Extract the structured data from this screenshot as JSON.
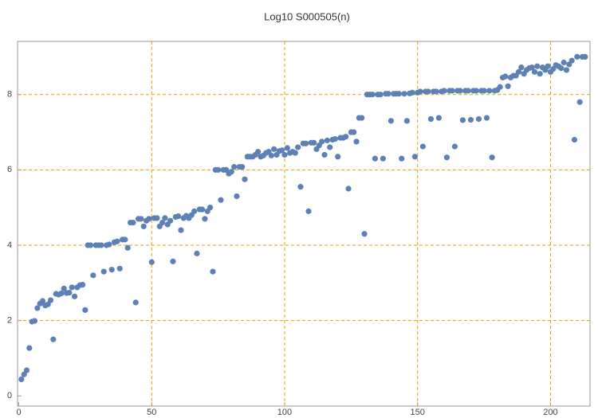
{
  "chart_data": {
    "type": "scatter",
    "title": "Log10 S000505(n)",
    "color": "#5e81b5",
    "grid_color": "#e69f00",
    "grid": true,
    "xlim": [
      0,
      215
    ],
    "ylim": [
      -0.27,
      9.41
    ],
    "xticks": [
      0,
      50,
      100,
      150,
      200
    ],
    "yticks": [
      0,
      2,
      4,
      6,
      8
    ],
    "x": [
      1,
      2,
      3,
      4,
      5,
      6,
      7,
      8,
      9,
      10,
      11,
      12,
      13,
      14,
      15,
      16,
      17,
      18,
      19,
      20,
      21,
      22,
      23,
      24,
      25,
      26,
      27,
      28,
      29,
      30,
      31,
      32,
      33,
      34,
      35,
      36,
      37,
      38,
      39,
      40,
      41,
      42,
      43,
      44,
      45,
      46,
      47,
      48,
      49,
      50,
      51,
      52,
      53,
      54,
      55,
      56,
      57,
      58,
      59,
      60,
      61,
      62,
      63,
      64,
      65,
      66,
      67,
      68,
      69,
      70,
      71,
      72,
      73,
      74,
      75,
      76,
      77,
      78,
      79,
      80,
      81,
      82,
      83,
      84,
      85,
      86,
      87,
      88,
      89,
      90,
      91,
      92,
      93,
      94,
      95,
      96,
      97,
      98,
      99,
      100,
      101,
      102,
      103,
      104,
      105,
      106,
      107,
      108,
      109,
      110,
      111,
      112,
      113,
      114,
      115,
      116,
      117,
      118,
      119,
      120,
      121,
      122,
      123,
      124,
      125,
      126,
      127,
      128,
      129,
      130,
      131,
      132,
      133,
      134,
      135,
      136,
      137,
      138,
      139,
      140,
      141,
      142,
      143,
      144,
      145,
      146,
      147,
      148,
      149,
      150,
      151,
      152,
      153,
      154,
      155,
      156,
      157,
      158,
      159,
      160,
      161,
      162,
      163,
      164,
      165,
      166,
      167,
      168,
      169,
      170,
      171,
      172,
      173,
      174,
      175,
      176,
      177,
      178,
      179,
      180,
      181,
      182,
      183,
      184,
      185,
      186,
      187,
      188,
      189,
      190,
      191,
      192,
      193,
      194,
      195,
      196,
      197,
      198,
      199,
      200,
      201,
      202,
      203,
      204,
      205,
      206,
      207,
      208,
      209,
      210,
      211,
      212,
      213
    ],
    "values": [
      0.44,
      0.57,
      0.68,
      1.27,
      1.97,
      1.99,
      2.33,
      2.45,
      2.52,
      2.4,
      2.43,
      2.54,
      1.5,
      2.71,
      2.69,
      2.72,
      2.85,
      2.73,
      2.74,
      2.88,
      2.64,
      2.88,
      2.94,
      2.95,
      2.28,
      4.0,
      4.0,
      3.2,
      4.0,
      4.0,
      4.0,
      3.3,
      4.0,
      4.02,
      3.35,
      4.08,
      4.1,
      3.38,
      4.15,
      4.15,
      3.93,
      4.6,
      4.6,
      2.48,
      4.7,
      4.7,
      4.5,
      4.65,
      4.7,
      3.55,
      4.72,
      4.72,
      4.5,
      4.6,
      4.72,
      4.55,
      4.65,
      3.57,
      4.75,
      4.77,
      4.4,
      4.72,
      4.78,
      4.72,
      4.8,
      4.9,
      3.78,
      4.95,
      4.95,
      4.7,
      4.9,
      5.0,
      3.3,
      6.0,
      6.0,
      5.2,
      6.0,
      6.0,
      5.9,
      5.95,
      6.08,
      5.3,
      6.08,
      6.08,
      5.75,
      6.35,
      6.35,
      6.35,
      6.4,
      6.48,
      6.35,
      6.38,
      6.45,
      6.48,
      6.38,
      6.55,
      6.4,
      6.5,
      6.52,
      6.4,
      6.58,
      6.45,
      6.48,
      6.45,
      6.6,
      5.55,
      6.7,
      6.7,
      4.9,
      6.72,
      6.72,
      6.55,
      6.65,
      6.75,
      6.4,
      6.78,
      6.6,
      6.8,
      6.82,
      6.35,
      6.85,
      6.85,
      6.88,
      5.5,
      7.0,
      7.0,
      6.75,
      7.38,
      7.38,
      4.3,
      8.0,
      8.0,
      8.0,
      6.3,
      8.0,
      8.0,
      6.3,
      8.02,
      8.02,
      7.3,
      8.02,
      8.02,
      8.02,
      6.3,
      8.02,
      7.3,
      8.03,
      8.05,
      6.35,
      8.05,
      8.08,
      6.62,
      8.08,
      8.08,
      7.35,
      8.08,
      8.08,
      7.38,
      8.08,
      8.1,
      6.33,
      8.1,
      8.1,
      6.62,
      8.1,
      8.1,
      7.32,
      8.1,
      8.1,
      7.33,
      8.1,
      8.1,
      7.35,
      8.1,
      8.1,
      7.38,
      8.1,
      6.33,
      8.1,
      8.12,
      8.2,
      8.45,
      8.48,
      8.22,
      8.45,
      8.5,
      8.5,
      8.6,
      8.72,
      8.55,
      8.65,
      8.7,
      8.72,
      8.6,
      8.75,
      8.55,
      8.72,
      8.65,
      8.75,
      8.6,
      8.68,
      8.78,
      8.75,
      8.7,
      8.85,
      8.65,
      8.8,
      8.9,
      6.8,
      9.0,
      7.8,
      9.0,
      9.0
    ]
  }
}
